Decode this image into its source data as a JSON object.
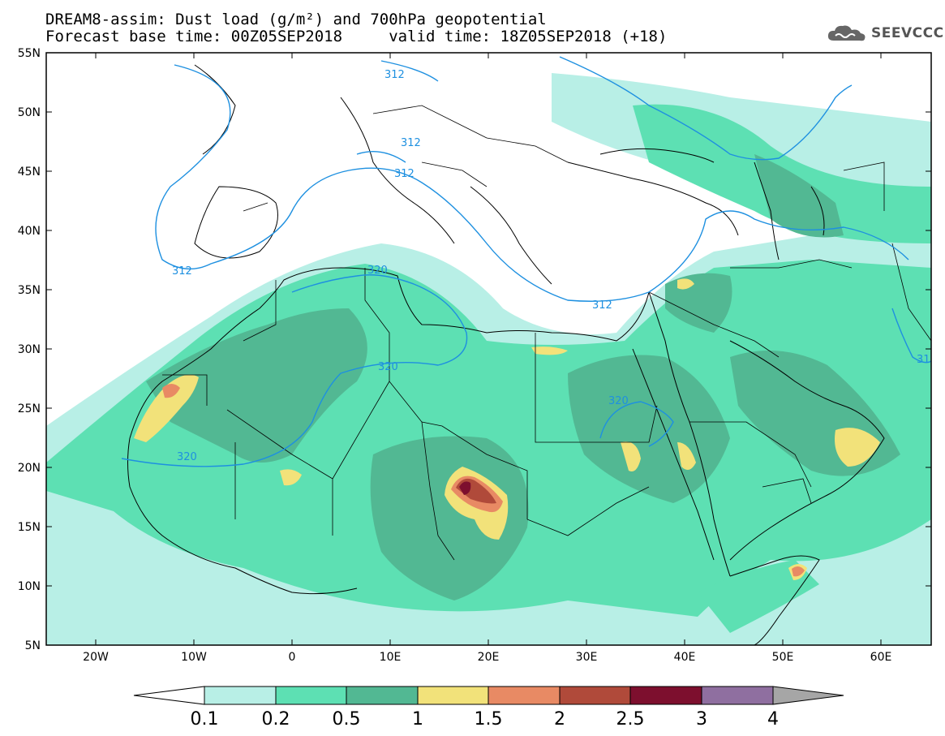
{
  "title": {
    "line1": "DREAM8-assim: Dust load (g/m²) and 700hPa geopotential",
    "line2": "Forecast base time: 00Z05SEP2018     valid time: 18Z05SEP2018 (+18)"
  },
  "logo": {
    "text": "SEEVCCC",
    "icon": "cloud-icon"
  },
  "axes": {
    "lat_labels": [
      "55N",
      "50N",
      "45N",
      "40N",
      "35N",
      "30N",
      "25N",
      "20N",
      "15N",
      "10N",
      "5N"
    ],
    "lon_labels": [
      "20W",
      "10W",
      "0",
      "10E",
      "20E",
      "30E",
      "40E",
      "50E",
      "60E"
    ],
    "lon_range": [
      -25,
      65
    ],
    "lat_range": [
      5,
      55
    ]
  },
  "contours": {
    "labels": [
      "312",
      "312",
      "312",
      "312",
      "312",
      "320",
      "320",
      "320",
      "320",
      "31"
    ]
  },
  "colorbar": {
    "ticks": [
      "0.1",
      "0.2",
      "0.5",
      "1",
      "1.5",
      "2",
      "2.5",
      "3",
      "4"
    ],
    "colors": [
      "#ffffff",
      "#b8efe6",
      "#5de0b3",
      "#52b893",
      "#f2e27a",
      "#e88a64",
      "#b04a3a",
      "#7d0f2e",
      "#8f6fa0",
      "#a6a6a6"
    ]
  }
}
